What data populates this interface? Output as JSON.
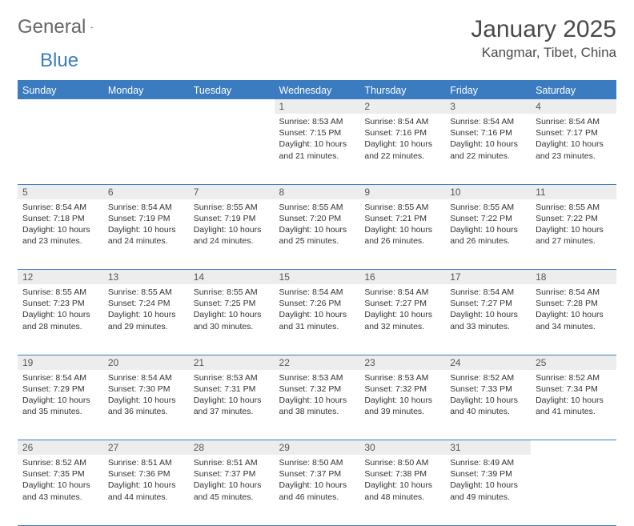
{
  "brand": {
    "general": "General",
    "blue": "Blue"
  },
  "title": "January 2025",
  "location": "Kangmar, Tibet, China",
  "colors": {
    "accent": "#3b7bbf",
    "header_bg": "#3b7bbf",
    "daynum_bg": "#ededed",
    "text": "#333333",
    "title_text": "#4a4a4a"
  },
  "days_of_week": [
    "Sunday",
    "Monday",
    "Tuesday",
    "Wednesday",
    "Thursday",
    "Friday",
    "Saturday"
  ],
  "start_weekday_index": 3,
  "num_days": 31,
  "days": {
    "1": {
      "sunrise": "8:53 AM",
      "sunset": "7:15 PM",
      "daylight": "10 hours and 21 minutes."
    },
    "2": {
      "sunrise": "8:54 AM",
      "sunset": "7:16 PM",
      "daylight": "10 hours and 22 minutes."
    },
    "3": {
      "sunrise": "8:54 AM",
      "sunset": "7:16 PM",
      "daylight": "10 hours and 22 minutes."
    },
    "4": {
      "sunrise": "8:54 AM",
      "sunset": "7:17 PM",
      "daylight": "10 hours and 23 minutes."
    },
    "5": {
      "sunrise": "8:54 AM",
      "sunset": "7:18 PM",
      "daylight": "10 hours and 23 minutes."
    },
    "6": {
      "sunrise": "8:54 AM",
      "sunset": "7:19 PM",
      "daylight": "10 hours and 24 minutes."
    },
    "7": {
      "sunrise": "8:55 AM",
      "sunset": "7:19 PM",
      "daylight": "10 hours and 24 minutes."
    },
    "8": {
      "sunrise": "8:55 AM",
      "sunset": "7:20 PM",
      "daylight": "10 hours and 25 minutes."
    },
    "9": {
      "sunrise": "8:55 AM",
      "sunset": "7:21 PM",
      "daylight": "10 hours and 26 minutes."
    },
    "10": {
      "sunrise": "8:55 AM",
      "sunset": "7:22 PM",
      "daylight": "10 hours and 26 minutes."
    },
    "11": {
      "sunrise": "8:55 AM",
      "sunset": "7:22 PM",
      "daylight": "10 hours and 27 minutes."
    },
    "12": {
      "sunrise": "8:55 AM",
      "sunset": "7:23 PM",
      "daylight": "10 hours and 28 minutes."
    },
    "13": {
      "sunrise": "8:55 AM",
      "sunset": "7:24 PM",
      "daylight": "10 hours and 29 minutes."
    },
    "14": {
      "sunrise": "8:55 AM",
      "sunset": "7:25 PM",
      "daylight": "10 hours and 30 minutes."
    },
    "15": {
      "sunrise": "8:54 AM",
      "sunset": "7:26 PM",
      "daylight": "10 hours and 31 minutes."
    },
    "16": {
      "sunrise": "8:54 AM",
      "sunset": "7:27 PM",
      "daylight": "10 hours and 32 minutes."
    },
    "17": {
      "sunrise": "8:54 AM",
      "sunset": "7:27 PM",
      "daylight": "10 hours and 33 minutes."
    },
    "18": {
      "sunrise": "8:54 AM",
      "sunset": "7:28 PM",
      "daylight": "10 hours and 34 minutes."
    },
    "19": {
      "sunrise": "8:54 AM",
      "sunset": "7:29 PM",
      "daylight": "10 hours and 35 minutes."
    },
    "20": {
      "sunrise": "8:54 AM",
      "sunset": "7:30 PM",
      "daylight": "10 hours and 36 minutes."
    },
    "21": {
      "sunrise": "8:53 AM",
      "sunset": "7:31 PM",
      "daylight": "10 hours and 37 minutes."
    },
    "22": {
      "sunrise": "8:53 AM",
      "sunset": "7:32 PM",
      "daylight": "10 hours and 38 minutes."
    },
    "23": {
      "sunrise": "8:53 AM",
      "sunset": "7:32 PM",
      "daylight": "10 hours and 39 minutes."
    },
    "24": {
      "sunrise": "8:52 AM",
      "sunset": "7:33 PM",
      "daylight": "10 hours and 40 minutes."
    },
    "25": {
      "sunrise": "8:52 AM",
      "sunset": "7:34 PM",
      "daylight": "10 hours and 41 minutes."
    },
    "26": {
      "sunrise": "8:52 AM",
      "sunset": "7:35 PM",
      "daylight": "10 hours and 43 minutes."
    },
    "27": {
      "sunrise": "8:51 AM",
      "sunset": "7:36 PM",
      "daylight": "10 hours and 44 minutes."
    },
    "28": {
      "sunrise": "8:51 AM",
      "sunset": "7:37 PM",
      "daylight": "10 hours and 45 minutes."
    },
    "29": {
      "sunrise": "8:50 AM",
      "sunset": "7:37 PM",
      "daylight": "10 hours and 46 minutes."
    },
    "30": {
      "sunrise": "8:50 AM",
      "sunset": "7:38 PM",
      "daylight": "10 hours and 48 minutes."
    },
    "31": {
      "sunrise": "8:49 AM",
      "sunset": "7:39 PM",
      "daylight": "10 hours and 49 minutes."
    }
  },
  "labels": {
    "sunrise": "Sunrise:",
    "sunset": "Sunset:",
    "daylight": "Daylight:"
  },
  "typography": {
    "title_fontsize": 30,
    "location_fontsize": 17,
    "header_fontsize": 12.5,
    "body_fontsize": 10.5
  }
}
